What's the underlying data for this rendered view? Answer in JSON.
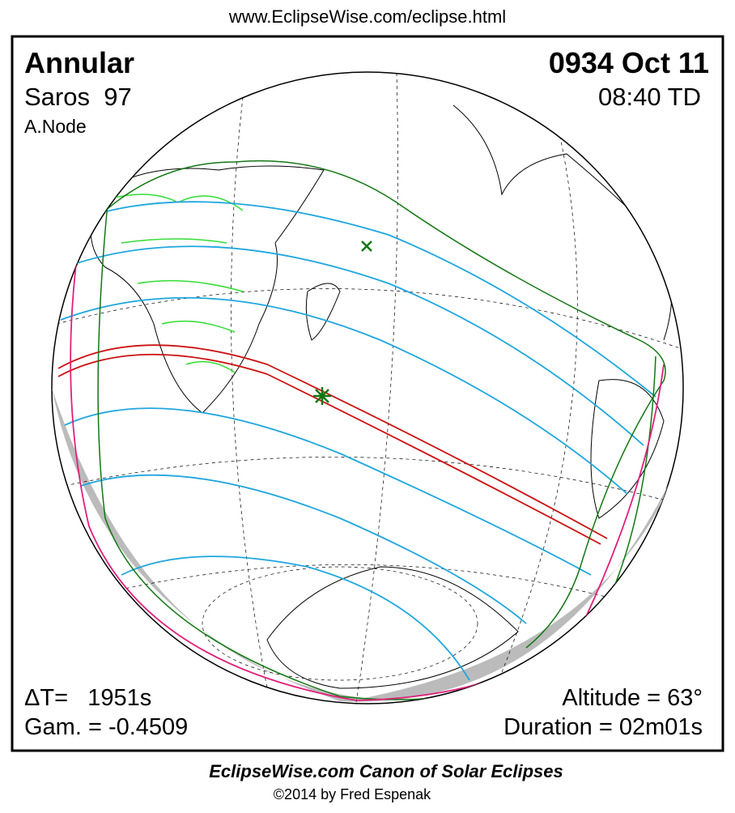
{
  "header": {
    "url": "www.EclipseWise.com/eclipse.html"
  },
  "panel": {
    "eclipse_type": "Annular",
    "saros": "Saros  97",
    "node": "A.Node",
    "date": "0934 Oct 11",
    "time": "08:40 TD",
    "delta_t": "ΔT=   1951s",
    "gamma": "Gam. = -0.4509",
    "altitude": "Altitude = 63°",
    "duration": "Duration = 02m01s"
  },
  "footer": {
    "canon": "EclipseWise.com Canon of Solar Eclipses",
    "copyright": "©2014 by Fred Espenak"
  }
}
